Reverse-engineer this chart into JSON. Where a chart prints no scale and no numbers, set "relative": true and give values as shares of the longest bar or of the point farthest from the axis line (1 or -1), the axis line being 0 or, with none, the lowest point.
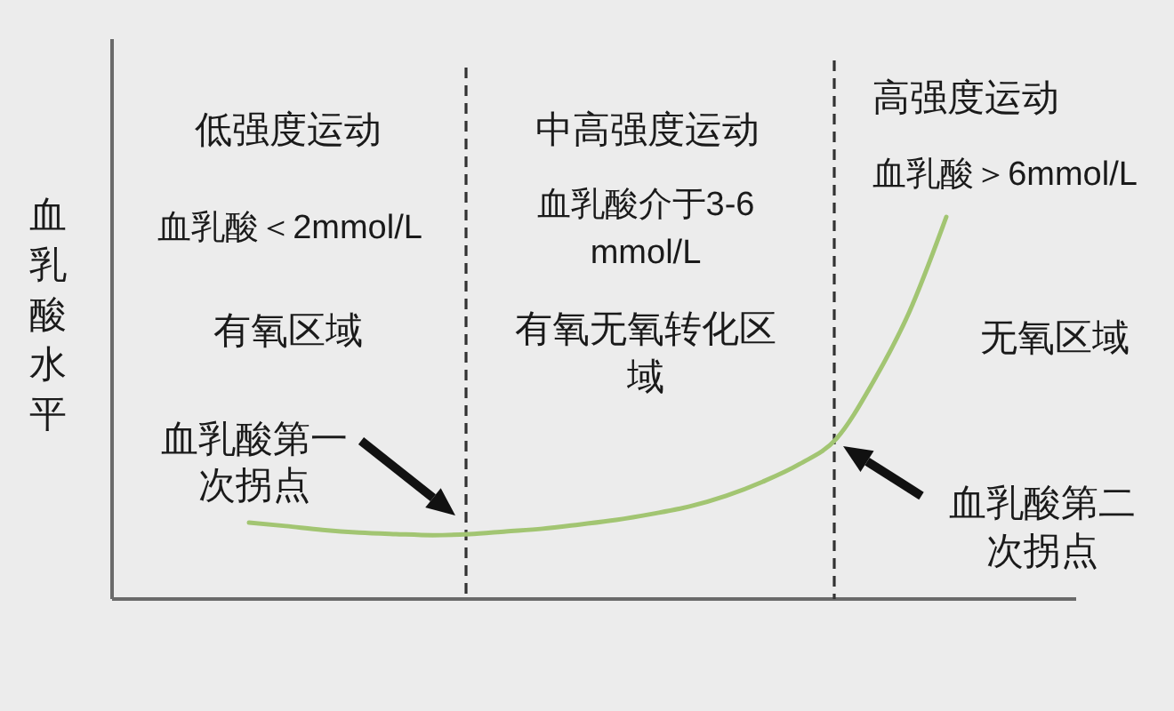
{
  "chart_data": {
    "type": "line",
    "ylabel": "血乳酸水平",
    "relative": true,
    "categories": [
      null,
      null,
      null,
      null,
      null,
      null,
      null,
      null,
      null,
      null,
      null,
      null,
      null,
      null,
      null,
      null,
      null,
      null,
      null,
      null
    ],
    "series": [
      {
        "color": "#a2c572",
        "values": [
          0.2,
          0.191,
          0.181,
          0.174,
          0.17,
          0.167,
          0.17,
          0.177,
          0.184,
          0.195,
          0.207,
          0.223,
          0.242,
          0.27,
          0.307,
          0.353,
          0.419,
          0.567,
          0.753,
          1
        ]
      }
    ],
    "annotations": [
      "低强度运动",
      "血乳酸＜2mmol/L",
      "有氧区域",
      "中高强度运动",
      "血乳酸介于3-6mmol/L",
      "有氧无氧转化区域",
      "高强度运动",
      "血乳酸＞6mmol/L",
      "无氧区域",
      "血乳酸第一次拐点",
      "血乳酸第二次拐点"
    ]
  }
}
